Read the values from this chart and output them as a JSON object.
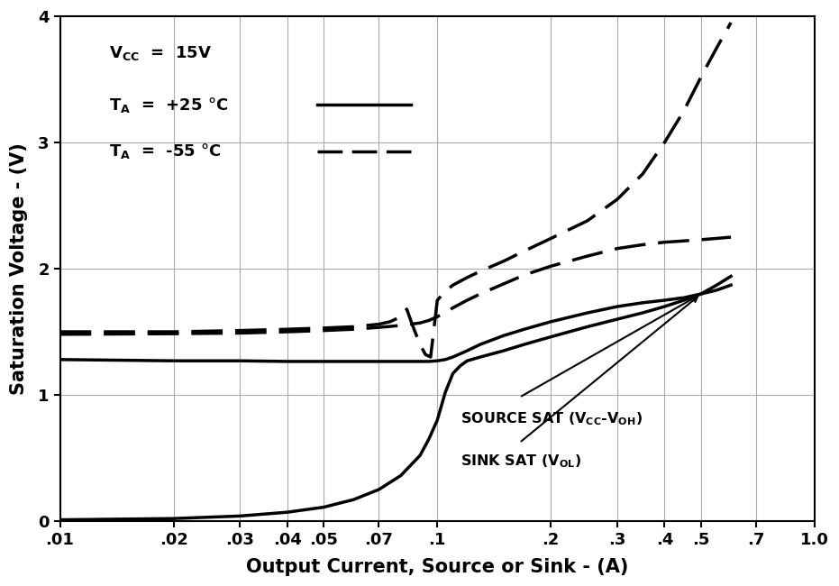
{
  "xlabel": "Output Current, Source or Sink - (A)",
  "ylabel": "Saturation Voltage - (V)",
  "xlim_log": [
    0.01,
    1.0
  ],
  "ylim": [
    0,
    4
  ],
  "yticks": [
    0,
    1,
    2,
    3,
    4
  ],
  "xticks": [
    0.01,
    0.02,
    0.03,
    0.04,
    0.05,
    0.07,
    0.1,
    0.2,
    0.3,
    0.4,
    0.5,
    0.7,
    1.0
  ],
  "xtick_labels": [
    ".01",
    ".02",
    ".03",
    ".04",
    ".05",
    ".07",
    ".1",
    ".2",
    ".3",
    ".4",
    ".5",
    ".7",
    "1.0"
  ],
  "background_color": "#ffffff",
  "line_color": "#000000",
  "grid_color": "#aaaaaa",
  "source_sat_25_x": [
    0.01,
    0.02,
    0.03,
    0.04,
    0.05,
    0.06,
    0.07,
    0.08,
    0.09,
    0.095,
    0.1,
    0.105,
    0.11,
    0.12,
    0.13,
    0.15,
    0.17,
    0.2,
    0.25,
    0.3,
    0.35,
    0.4,
    0.45,
    0.5,
    0.55,
    0.6
  ],
  "source_sat_25_y": [
    1.28,
    1.27,
    1.27,
    1.265,
    1.265,
    1.265,
    1.265,
    1.265,
    1.265,
    1.265,
    1.27,
    1.28,
    1.3,
    1.35,
    1.4,
    1.47,
    1.52,
    1.58,
    1.65,
    1.7,
    1.73,
    1.75,
    1.77,
    1.8,
    1.83,
    1.87
  ],
  "source_sat_n55_x": [
    0.01,
    0.02,
    0.03,
    0.04,
    0.05,
    0.06,
    0.07,
    0.075,
    0.08,
    0.083,
    0.086,
    0.09,
    0.093,
    0.096,
    0.1,
    0.105,
    0.11,
    0.12,
    0.13,
    0.15,
    0.17,
    0.2,
    0.25,
    0.3,
    0.35,
    0.4,
    0.45,
    0.5,
    0.55,
    0.6
  ],
  "source_sat_n55_y": [
    1.5,
    1.5,
    1.51,
    1.52,
    1.53,
    1.54,
    1.56,
    1.58,
    1.62,
    1.68,
    1.55,
    1.4,
    1.32,
    1.3,
    1.75,
    1.82,
    1.87,
    1.93,
    1.98,
    2.06,
    2.14,
    2.24,
    2.38,
    2.55,
    2.75,
    3.0,
    3.25,
    3.52,
    3.75,
    3.95
  ],
  "sink_sat_25_x": [
    0.01,
    0.02,
    0.03,
    0.04,
    0.05,
    0.06,
    0.07,
    0.08,
    0.09,
    0.095,
    0.1,
    0.105,
    0.11,
    0.115,
    0.12,
    0.13,
    0.15,
    0.17,
    0.2,
    0.25,
    0.3,
    0.35,
    0.4,
    0.45,
    0.5,
    0.55,
    0.6
  ],
  "sink_sat_25_y": [
    0.01,
    0.02,
    0.04,
    0.07,
    0.11,
    0.17,
    0.25,
    0.36,
    0.52,
    0.65,
    0.8,
    1.02,
    1.17,
    1.23,
    1.27,
    1.3,
    1.35,
    1.4,
    1.46,
    1.54,
    1.6,
    1.65,
    1.7,
    1.75,
    1.8,
    1.87,
    1.94
  ],
  "sink_sat_n55_x": [
    0.01,
    0.02,
    0.03,
    0.04,
    0.05,
    0.06,
    0.07,
    0.08,
    0.09,
    0.095,
    0.1,
    0.105,
    0.11,
    0.12,
    0.13,
    0.15,
    0.17,
    0.2,
    0.25,
    0.3,
    0.35,
    0.4,
    0.45,
    0.5,
    0.55,
    0.6
  ],
  "sink_sat_n55_y": [
    1.48,
    1.485,
    1.49,
    1.5,
    1.51,
    1.52,
    1.535,
    1.55,
    1.57,
    1.59,
    1.62,
    1.65,
    1.69,
    1.75,
    1.8,
    1.88,
    1.95,
    2.02,
    2.1,
    2.16,
    2.19,
    2.21,
    2.22,
    2.23,
    2.24,
    2.25
  ]
}
